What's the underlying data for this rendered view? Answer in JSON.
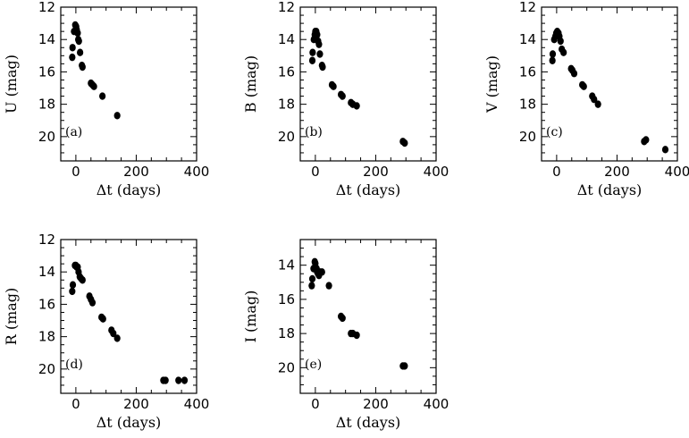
{
  "chart_data": [
    {
      "type": "scatter",
      "panel_label": "(a)",
      "xlabel": "Δt (days)",
      "ylabel": "U (mag)",
      "xlim": [
        -50,
        400
      ],
      "ylim": [
        21.5,
        12
      ],
      "xticks": [
        0,
        200,
        400
      ],
      "yticks": [
        12,
        14,
        16,
        18,
        20
      ],
      "points": [
        {
          "x": -12,
          "y": 15.1
        },
        {
          "x": -11,
          "y": 14.5
        },
        {
          "x": -6,
          "y": 13.5
        },
        {
          "x": -2,
          "y": 13.1
        },
        {
          "x": 1,
          "y": 13.2
        },
        {
          "x": 3,
          "y": 13.4
        },
        {
          "x": 6,
          "y": 13.6
        },
        {
          "x": 8,
          "y": 14.0
        },
        {
          "x": 10,
          "y": 14.1
        },
        {
          "x": 14,
          "y": 14.8
        },
        {
          "x": 20,
          "y": 15.6
        },
        {
          "x": 22,
          "y": 15.7
        },
        {
          "x": 50,
          "y": 16.7
        },
        {
          "x": 55,
          "y": 16.8
        },
        {
          "x": 60,
          "y": 16.9
        },
        {
          "x": 88,
          "y": 17.5
        },
        {
          "x": 137,
          "y": 18.7
        }
      ]
    },
    {
      "type": "scatter",
      "panel_label": "(b)",
      "xlabel": "Δt (days)",
      "ylabel": "B (mag)",
      "xlim": [
        -50,
        400
      ],
      "ylim": [
        21.5,
        12
      ],
      "xticks": [
        0,
        200,
        400
      ],
      "yticks": [
        12,
        14,
        16,
        18,
        20
      ],
      "points": [
        {
          "x": -10,
          "y": 15.3
        },
        {
          "x": -9,
          "y": 14.8
        },
        {
          "x": -5,
          "y": 14.0
        },
        {
          "x": -2,
          "y": 13.7
        },
        {
          "x": 0,
          "y": 13.5
        },
        {
          "x": 3,
          "y": 13.5
        },
        {
          "x": 6,
          "y": 13.7
        },
        {
          "x": 9,
          "y": 14.1
        },
        {
          "x": 12,
          "y": 14.3
        },
        {
          "x": 15,
          "y": 14.9
        },
        {
          "x": 22,
          "y": 15.6
        },
        {
          "x": 24,
          "y": 15.7
        },
        {
          "x": 55,
          "y": 16.8
        },
        {
          "x": 60,
          "y": 16.9
        },
        {
          "x": 85,
          "y": 17.4
        },
        {
          "x": 90,
          "y": 17.5
        },
        {
          "x": 118,
          "y": 17.9
        },
        {
          "x": 124,
          "y": 18.0
        },
        {
          "x": 137,
          "y": 18.1
        },
        {
          "x": 290,
          "y": 20.3
        },
        {
          "x": 296,
          "y": 20.4
        }
      ]
    },
    {
      "type": "scatter",
      "panel_label": "(c)",
      "xlabel": "Δt (days)",
      "ylabel": "V (mag)",
      "xlim": [
        -50,
        400
      ],
      "ylim": [
        21.5,
        12
      ],
      "xticks": [
        0,
        200,
        400
      ],
      "yticks": [
        12,
        14,
        16,
        18,
        20
      ],
      "points": [
        {
          "x": -14,
          "y": 15.3
        },
        {
          "x": -13,
          "y": 14.9
        },
        {
          "x": -8,
          "y": 14.0
        },
        {
          "x": -4,
          "y": 13.8
        },
        {
          "x": -1,
          "y": 13.6
        },
        {
          "x": 2,
          "y": 13.5
        },
        {
          "x": 6,
          "y": 13.6
        },
        {
          "x": 9,
          "y": 13.8
        },
        {
          "x": 13,
          "y": 14.1
        },
        {
          "x": 17,
          "y": 14.6
        },
        {
          "x": 23,
          "y": 14.8
        },
        {
          "x": 48,
          "y": 15.8
        },
        {
          "x": 52,
          "y": 15.9
        },
        {
          "x": 58,
          "y": 16.1
        },
        {
          "x": 85,
          "y": 16.8
        },
        {
          "x": 90,
          "y": 16.9
        },
        {
          "x": 118,
          "y": 17.5
        },
        {
          "x": 124,
          "y": 17.7
        },
        {
          "x": 137,
          "y": 18.0
        },
        {
          "x": 290,
          "y": 20.3
        },
        {
          "x": 296,
          "y": 20.2
        },
        {
          "x": 360,
          "y": 20.8
        }
      ]
    },
    {
      "type": "scatter",
      "panel_label": "(d)",
      "xlabel": "Δt (days)",
      "ylabel": "R (mag)",
      "xlim": [
        -50,
        400
      ],
      "ylim": [
        21.5,
        12
      ],
      "xticks": [
        0,
        200,
        400
      ],
      "yticks": [
        12,
        14,
        16,
        18,
        20
      ],
      "points": [
        {
          "x": -12,
          "y": 15.2
        },
        {
          "x": -10,
          "y": 14.8
        },
        {
          "x": -3,
          "y": 13.6
        },
        {
          "x": 0,
          "y": 13.6
        },
        {
          "x": 3,
          "y": 13.7
        },
        {
          "x": 6,
          "y": 13.7
        },
        {
          "x": 9,
          "y": 14.0
        },
        {
          "x": 13,
          "y": 14.3
        },
        {
          "x": 17,
          "y": 14.4
        },
        {
          "x": 22,
          "y": 14.5
        },
        {
          "x": 45,
          "y": 15.5
        },
        {
          "x": 50,
          "y": 15.7
        },
        {
          "x": 55,
          "y": 15.9
        },
        {
          "x": 85,
          "y": 16.8
        },
        {
          "x": 90,
          "y": 16.9
        },
        {
          "x": 118,
          "y": 17.6
        },
        {
          "x": 124,
          "y": 17.8
        },
        {
          "x": 137,
          "y": 18.1
        },
        {
          "x": 290,
          "y": 20.7
        },
        {
          "x": 297,
          "y": 20.7
        },
        {
          "x": 340,
          "y": 20.7
        },
        {
          "x": 360,
          "y": 20.7
        }
      ]
    },
    {
      "type": "scatter",
      "panel_label": "(e)",
      "xlabel": "Δt (days)",
      "ylabel": "I (mag)",
      "xlim": [
        -50,
        400
      ],
      "ylim": [
        21.5,
        12.5
      ],
      "xticks": [
        0,
        200,
        400
      ],
      "yticks": [
        14,
        16,
        18,
        20
      ],
      "points": [
        {
          "x": -12,
          "y": 15.2
        },
        {
          "x": -10,
          "y": 14.8
        },
        {
          "x": -6,
          "y": 14.2
        },
        {
          "x": -2,
          "y": 13.8
        },
        {
          "x": 0,
          "y": 13.9
        },
        {
          "x": 4,
          "y": 14.2
        },
        {
          "x": 6,
          "y": 14.4
        },
        {
          "x": 9,
          "y": 14.5
        },
        {
          "x": 12,
          "y": 14.6
        },
        {
          "x": 16,
          "y": 14.4
        },
        {
          "x": 22,
          "y": 14.4
        },
        {
          "x": 45,
          "y": 15.2
        },
        {
          "x": 85,
          "y": 17.0
        },
        {
          "x": 90,
          "y": 17.1
        },
        {
          "x": 118,
          "y": 18.0
        },
        {
          "x": 124,
          "y": 18.0
        },
        {
          "x": 137,
          "y": 18.1
        },
        {
          "x": 290,
          "y": 19.9
        },
        {
          "x": 296,
          "y": 19.9
        }
      ]
    }
  ]
}
